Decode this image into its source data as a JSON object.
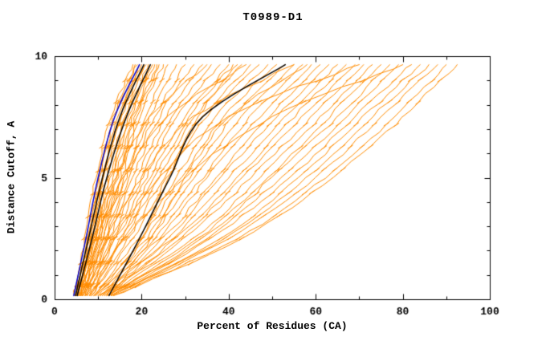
{
  "chart_data": {
    "type": "line",
    "title": "T0989-D1",
    "xlabel": "Percent of Residues (CA)",
    "ylabel": "Distance Cutoff, A",
    "xlim": [
      0,
      100
    ],
    "ylim": [
      0,
      10
    ],
    "x_ticks": [
      0,
      20,
      40,
      60,
      80,
      100
    ],
    "y_ticks": [
      0,
      5,
      10
    ],
    "x_minor_step": 10,
    "y_minor_step": 1,
    "grid": false,
    "legend": "none",
    "model_color": "#ff8c00",
    "reference_color": "#0000cc",
    "highlight_color": "#000000",
    "y_anchors": [
      0.15,
      2.5,
      5,
      7.5,
      9.65
    ],
    "series": [
      {
        "x": [
          4.5,
          7,
          9.5,
          13,
          18
        ]
      },
      {
        "x": [
          4.6,
          7.5,
          10,
          13.5,
          18.5
        ]
      },
      {
        "x": [
          4.8,
          7.8,
          10.5,
          14,
          19
        ]
      },
      {
        "x": [
          5,
          8,
          11,
          14.5,
          19.5
        ]
      },
      {
        "x": [
          5,
          8.2,
          11.2,
          15,
          20
        ]
      },
      {
        "x": [
          5.2,
          8.5,
          11.5,
          15.5,
          20.5
        ]
      },
      {
        "x": [
          5.4,
          8.8,
          12,
          16,
          21
        ]
      },
      {
        "x": [
          5.5,
          9,
          12.5,
          16.5,
          21.5
        ]
      },
      {
        "x": [
          5.6,
          9.2,
          13,
          17,
          22
        ]
      },
      {
        "x": [
          5.8,
          9.5,
          13.5,
          17.5,
          22.5
        ]
      },
      {
        "x": [
          6,
          10,
          14,
          18,
          23
        ]
      },
      {
        "x": [
          6,
          10.2,
          14.5,
          18.5,
          23.5
        ]
      },
      {
        "x": [
          6.2,
          10.5,
          15,
          19,
          24
        ]
      },
      {
        "x": [
          6.4,
          11,
          15.5,
          19.5,
          25
        ]
      },
      {
        "x": [
          6.5,
          11,
          16,
          21,
          26
        ]
      },
      {
        "x": [
          6.5,
          11.5,
          16.5,
          22,
          28
        ]
      },
      {
        "x": [
          7,
          12,
          17,
          23,
          30
        ]
      },
      {
        "x": [
          7,
          12.5,
          18,
          24,
          32
        ]
      },
      {
        "x": [
          7.2,
          13,
          19,
          25.5,
          34
        ]
      },
      {
        "x": [
          7.5,
          13.5,
          20,
          27,
          36
        ]
      },
      {
        "x": [
          7.5,
          14,
          21,
          28,
          38
        ]
      },
      {
        "x": [
          8,
          15,
          22,
          30,
          40
        ]
      },
      {
        "x": [
          8,
          15.5,
          23,
          31,
          41
        ]
      },
      {
        "x": [
          8.2,
          16,
          24,
          32,
          43
        ]
      },
      {
        "x": [
          8.5,
          17,
          25,
          34,
          45
        ]
      },
      {
        "x": [
          8.5,
          18,
          26,
          35,
          47
        ]
      },
      {
        "x": [
          9,
          19,
          28,
          37,
          49
        ]
      },
      {
        "x": [
          9,
          20,
          29,
          39,
          51
        ]
      },
      {
        "x": [
          9.2,
          21,
          31,
          41,
          53
        ]
      },
      {
        "x": [
          9.5,
          22,
          32,
          43,
          55
        ]
      },
      {
        "x": [
          9.5,
          23,
          34,
          45,
          57
        ]
      },
      {
        "x": [
          10,
          24,
          35,
          47,
          59
        ]
      },
      {
        "x": [
          10,
          25,
          37,
          49,
          61
        ]
      },
      {
        "x": [
          10.5,
          26,
          38,
          51,
          63
        ]
      },
      {
        "x": [
          10.5,
          27,
          40,
          53,
          65
        ]
      },
      {
        "x": [
          11,
          28,
          42,
          55,
          67
        ]
      },
      {
        "x": [
          11,
          29,
          43,
          57,
          69
        ]
      },
      {
        "x": [
          11.5,
          30,
          45,
          59,
          71
        ]
      },
      {
        "x": [
          11.5,
          32,
          47,
          61,
          73
        ]
      },
      {
        "x": [
          12,
          33,
          49,
          63,
          75
        ]
      },
      {
        "x": [
          12,
          34,
          50,
          65,
          77
        ]
      },
      {
        "x": [
          12.5,
          35,
          52,
          67,
          79
        ]
      },
      {
        "x": [
          12.5,
          36,
          54,
          69,
          82
        ]
      },
      {
        "x": [
          13,
          38,
          56,
          71,
          84
        ]
      },
      {
        "x": [
          13,
          39,
          58,
          73,
          86
        ]
      },
      {
        "x": [
          13,
          40,
          60,
          75,
          88
        ]
      },
      {
        "x": [
          13.5,
          42,
          62,
          78,
          90
        ]
      },
      {
        "x": [
          13.5,
          43,
          64,
          80,
          92.5
        ]
      },
      {
        "x": [
          5,
          9,
          14,
          22,
          35
        ]
      },
      {
        "x": [
          5.5,
          10,
          16,
          26,
          44
        ]
      },
      {
        "x": [
          6,
          12,
          20,
          32,
          55
        ]
      },
      {
        "x": [
          6.5,
          14,
          24,
          40,
          70
        ]
      },
      {
        "x": [
          7,
          16,
          30,
          50,
          80
        ]
      },
      {
        "x": [
          12,
          20,
          26,
          33,
          42
        ]
      },
      {
        "x": [
          13,
          22,
          30,
          40,
          58
        ]
      },
      {
        "name": "black-line-1",
        "color": "#000000",
        "width": 1.5,
        "x": [
          4.8,
          7.8,
          11,
          15,
          20.5
        ]
      },
      {
        "name": "black-line-2",
        "color": "#000000",
        "width": 1.5,
        "x": [
          5.2,
          8.6,
          12,
          16.5,
          22
        ]
      },
      {
        "name": "black-line-3",
        "color": "#000000",
        "width": 1.5,
        "x": [
          12.5,
          19.5,
          26.5,
          34,
          53
        ]
      },
      {
        "name": "blue-line",
        "color": "#0000cc",
        "width": 1.5,
        "x": [
          4.4,
          7.2,
          10,
          13.8,
          19.5
        ]
      }
    ]
  }
}
